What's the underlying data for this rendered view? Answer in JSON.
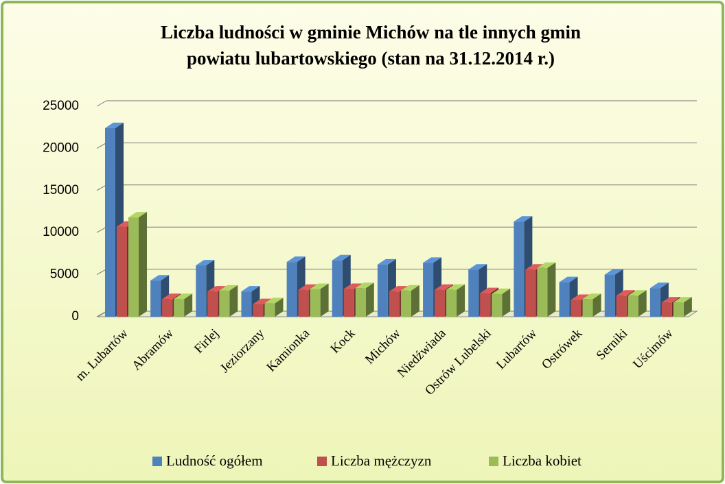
{
  "chart_data": {
    "type": "bar3d",
    "title": [
      "Liczba ludności w gminie Michów na tle innych gmin",
      "powiatu lubartowskiego (stan na 31.12.2014 r.)"
    ],
    "categories": [
      "m. Lubartów",
      "Abramów",
      "Firlej",
      "Jeziorzany",
      "Kamionka",
      "Kock",
      "Michów",
      "Niedźwiada",
      "Ostrów Lubelski",
      "Lubartów",
      "Ostrówek",
      "Serniki",
      "Uścimów"
    ],
    "series": [
      {
        "name": "Ludność ogółem",
        "color": "#4f81bd",
        "values": [
          22400,
          4300,
          6100,
          3000,
          6500,
          6700,
          6200,
          6400,
          5600,
          11300,
          4100,
          5000,
          3400
        ]
      },
      {
        "name": "Liczba mężczyzn",
        "color": "#c0504d",
        "values": [
          10700,
          2100,
          3000,
          1500,
          3200,
          3300,
          3000,
          3200,
          2800,
          5600,
          2000,
          2500,
          1700
        ]
      },
      {
        "name": "Liczba kobiet",
        "color": "#9bbb59",
        "values": [
          11800,
          2100,
          3100,
          1600,
          3300,
          3400,
          3100,
          3200,
          2700,
          5800,
          2100,
          2500,
          1700
        ]
      }
    ],
    "ylim": [
      0,
      25000
    ],
    "yticks": [
      0,
      5000,
      10000,
      15000,
      20000,
      25000
    ],
    "grid": true,
    "legend": "bottom"
  }
}
